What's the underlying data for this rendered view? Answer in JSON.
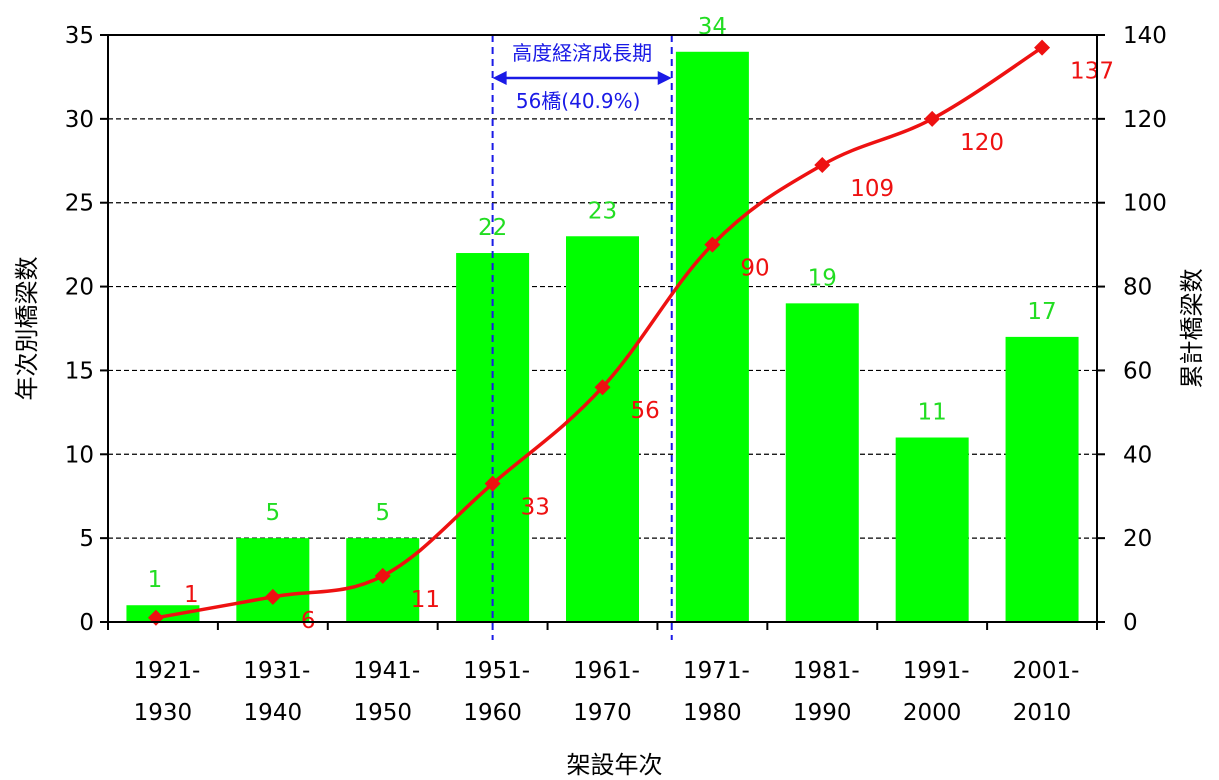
{
  "chart_data": {
    "type": "bar",
    "categories": [
      [
        "1921-",
        "1930"
      ],
      [
        "1931-",
        "1940"
      ],
      [
        "1941-",
        "1950"
      ],
      [
        "1951-",
        "1960"
      ],
      [
        "1961-",
        "1970"
      ],
      [
        "1971-",
        "1980"
      ],
      [
        "1981-",
        "1990"
      ],
      [
        "1991-",
        "2000"
      ],
      [
        "2001-",
        "2010"
      ]
    ],
    "series": [
      {
        "type": "bar",
        "axis": "left",
        "color": "#00ff00",
        "label_color": "#22dd22",
        "values": [
          1,
          5,
          5,
          22,
          23,
          34,
          19,
          11,
          17
        ]
      },
      {
        "type": "line",
        "axis": "right",
        "color": "#ee1111",
        "values": [
          1,
          6,
          11,
          33,
          56,
          90,
          109,
          120,
          137
        ]
      }
    ],
    "xlabel": "架設年次",
    "ylabel": "年次別橋梁数",
    "y2label": "累計橋梁数",
    "ylim": [
      0,
      35
    ],
    "yticks": [
      0,
      5,
      10,
      15,
      20,
      25,
      30,
      35
    ],
    "y2lim": [
      0,
      140
    ],
    "y2ticks": [
      0,
      20,
      40,
      60,
      80,
      100,
      120,
      140
    ],
    "grid": "horizontal-dashed",
    "annotation": {
      "title": "高度経済成長期",
      "text": "56橋(40.9%)",
      "from_category": 3,
      "to_category": 5,
      "color": "#1a1ae6"
    }
  }
}
